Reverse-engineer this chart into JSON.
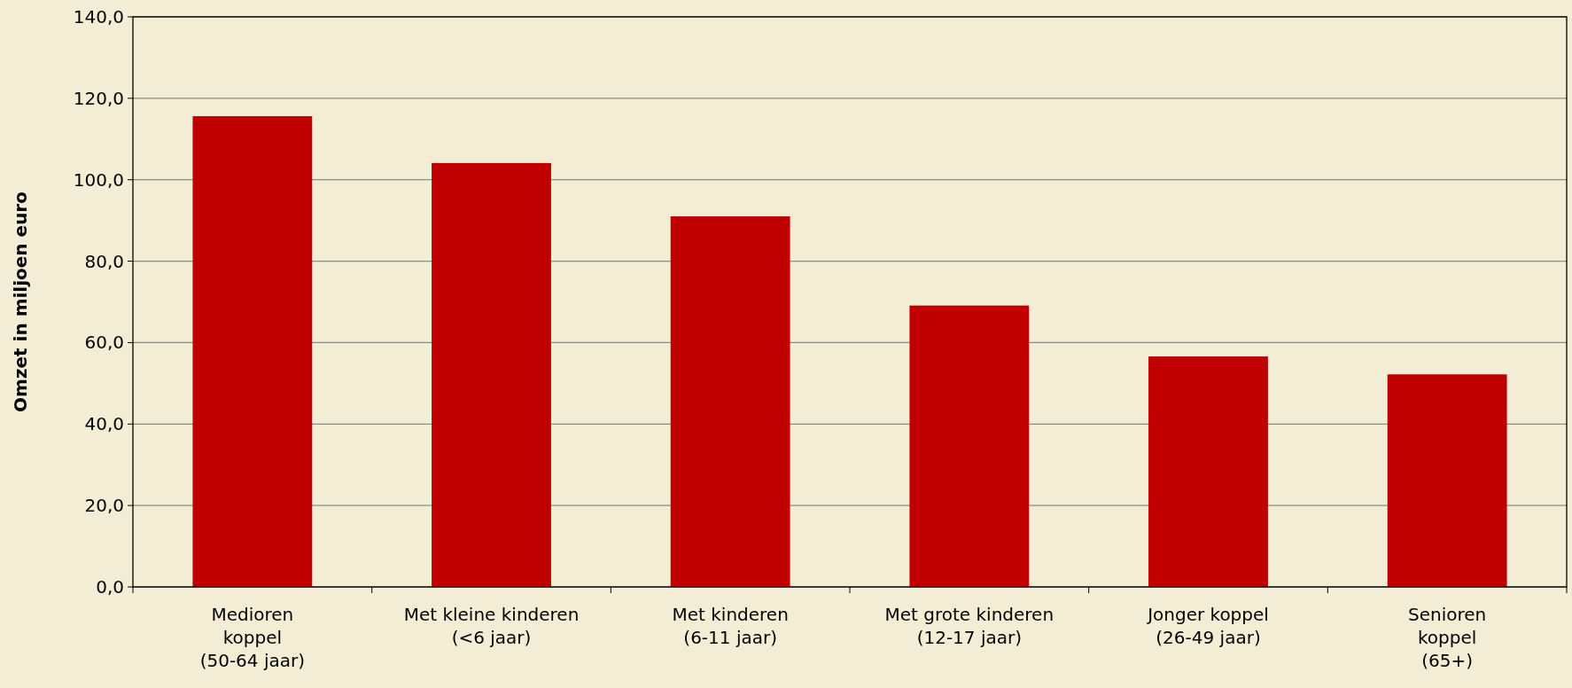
{
  "chart_data": {
    "type": "bar",
    "ylabel": "Omzet in miljoen euro",
    "categories": [
      "Medioren\nkoppel\n(50-64 jaar)",
      "Met kleine kinderen\n(<6 jaar)",
      "Met kinderen\n(6-11 jaar)",
      "Met grote kinderen\n(12-17 jaar)",
      "Jonger koppel\n(26-49 jaar)",
      "Senioren\nkoppel\n(65+)"
    ],
    "values": [
      115.6,
      104.1,
      91.0,
      69.1,
      56.6,
      52.2
    ],
    "color": "#c00000",
    "ylim": [
      0,
      140
    ],
    "yticks": [
      {
        "value": 0,
        "label": "0,0"
      },
      {
        "value": 20,
        "label": "20,0"
      },
      {
        "value": 40,
        "label": "40,0"
      },
      {
        "value": 60,
        "label": "60,0"
      },
      {
        "value": 80,
        "label": "80,0"
      },
      {
        "value": 100,
        "label": "100,0"
      },
      {
        "value": 120,
        "label": "120,0"
      },
      {
        "value": 140,
        "label": "140,0"
      }
    ],
    "grid": "y"
  }
}
